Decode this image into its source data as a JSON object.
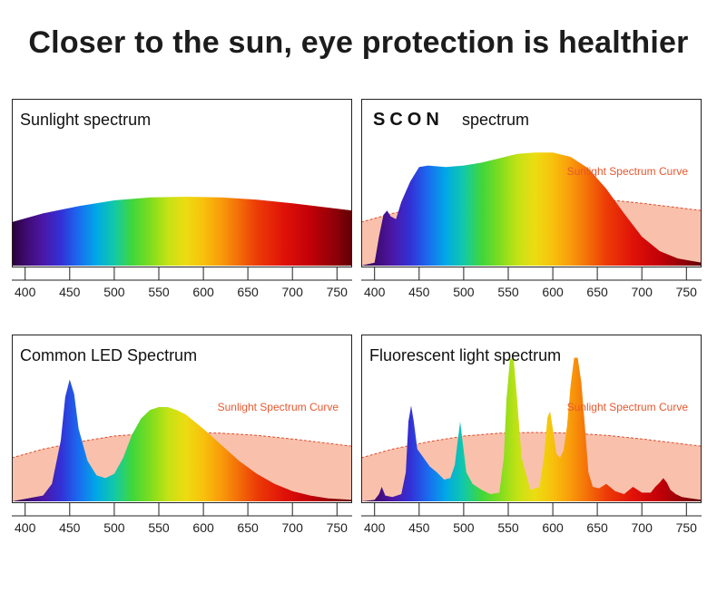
{
  "title": "Closer to the sun, eye protection is healthier",
  "colors": {
    "reference_fill": "#f9c1ac",
    "reference_dash": "#e24a2a",
    "reference_label": "#e8582f",
    "frame": "#222222"
  },
  "chart_data": [
    {
      "type": "area",
      "id": "sunlight",
      "title": "Sunlight spectrum",
      "xlim": [
        385,
        767
      ],
      "ylim": [
        0,
        100
      ],
      "ticks": [
        400,
        450,
        500,
        550,
        600,
        650,
        700,
        750
      ],
      "show_reference": false,
      "series": [
        {
          "x": [
            385,
            420,
            460,
            500,
            540,
            580,
            620,
            660,
            700,
            740,
            767
          ],
          "y": [
            30,
            36,
            41,
            45,
            47,
            47.5,
            47,
            45.5,
            43,
            40,
            38
          ]
        }
      ]
    },
    {
      "type": "area",
      "id": "scon",
      "title": "spectrum",
      "brand": "SCON",
      "reference_label": "Sunlight Spectrum Curve",
      "xlim": [
        385,
        767
      ],
      "ylim": [
        0,
        100
      ],
      "ticks": [
        400,
        450,
        500,
        550,
        600,
        650,
        700,
        750
      ],
      "show_reference": true,
      "reference": {
        "x": [
          385,
          420,
          460,
          500,
          540,
          580,
          620,
          660,
          700,
          740,
          767
        ],
        "y": [
          30,
          36,
          41,
          45,
          47,
          47.5,
          47,
          45.5,
          43,
          40,
          38
        ]
      },
      "series": [
        {
          "x": [
            385,
            400,
            405,
            410,
            414,
            418,
            424,
            430,
            440,
            450,
            460,
            480,
            500,
            520,
            540,
            560,
            580,
            600,
            620,
            640,
            660,
            680,
            700,
            720,
            740,
            767
          ],
          "y": [
            0,
            2,
            20,
            35,
            38,
            34,
            32,
            44,
            58,
            68,
            69,
            68,
            69,
            71,
            74,
            77,
            78,
            78,
            75,
            67,
            53,
            36,
            20,
            10,
            5,
            2
          ]
        }
      ]
    },
    {
      "type": "area",
      "id": "led",
      "title": "Common LED Spectrum",
      "reference_label": "Sunlight Spectrum Curve",
      "xlim": [
        385,
        767
      ],
      "ylim": [
        0,
        100
      ],
      "ticks": [
        400,
        450,
        500,
        550,
        600,
        650,
        700,
        750
      ],
      "show_reference": true,
      "reference": {
        "x": [
          385,
          420,
          460,
          500,
          540,
          580,
          620,
          660,
          700,
          740,
          767
        ],
        "y": [
          30,
          36,
          41,
          45,
          47,
          47.5,
          47,
          45.5,
          43,
          40,
          38
        ]
      },
      "series": [
        {
          "x": [
            385,
            420,
            430,
            440,
            445,
            450,
            455,
            460,
            470,
            480,
            490,
            500,
            510,
            520,
            530,
            540,
            550,
            560,
            570,
            580,
            600,
            620,
            640,
            660,
            680,
            700,
            720,
            740,
            767
          ],
          "y": [
            0,
            4,
            12,
            42,
            72,
            84,
            74,
            50,
            28,
            18,
            16,
            19,
            30,
            46,
            57,
            63,
            65,
            65,
            63,
            60,
            50,
            39,
            28,
            19,
            12,
            7,
            4,
            2,
            1
          ]
        }
      ]
    },
    {
      "type": "area",
      "id": "fluorescent",
      "title": "Fluorescent light spectrum",
      "reference_label": "Sunlight Spectrum Curve",
      "xlim": [
        385,
        767
      ],
      "ylim": [
        0,
        100
      ],
      "ticks": [
        400,
        450,
        500,
        550,
        600,
        650,
        700,
        750
      ],
      "show_reference": true,
      "reference": {
        "x": [
          385,
          420,
          460,
          500,
          540,
          580,
          620,
          660,
          700,
          740,
          767
        ],
        "y": [
          30,
          36,
          41,
          45,
          47,
          47.5,
          47,
          45.5,
          43,
          40,
          38
        ]
      },
      "series": [
        {
          "x": [
            385,
            400,
            405,
            408,
            412,
            420,
            430,
            435,
            438,
            441,
            444,
            448,
            455,
            462,
            470,
            478,
            485,
            490,
            493,
            496,
            499,
            503,
            510,
            520,
            530,
            540,
            545,
            548,
            552,
            556,
            560,
            565,
            575,
            585,
            590,
            594,
            597,
            600,
            604,
            608,
            612,
            616,
            620,
            624,
            628,
            632,
            636,
            640,
            645,
            652,
            660,
            670,
            680,
            690,
            700,
            710,
            715,
            720,
            724,
            728,
            732,
            738,
            745,
            755,
            767
          ],
          "y": [
            0,
            1,
            5,
            10,
            4,
            3,
            5,
            20,
            55,
            66,
            55,
            36,
            30,
            24,
            20,
            15,
            16,
            25,
            40,
            55,
            40,
            20,
            12,
            8,
            5,
            6,
            30,
            70,
            98,
            99,
            70,
            30,
            8,
            10,
            30,
            58,
            62,
            50,
            33,
            30,
            35,
            52,
            80,
            99,
            99,
            82,
            52,
            20,
            10,
            9,
            12,
            7,
            5,
            10,
            6,
            6,
            10,
            13,
            16,
            13,
            8,
            5,
            3,
            2,
            1
          ]
        }
      ]
    }
  ]
}
